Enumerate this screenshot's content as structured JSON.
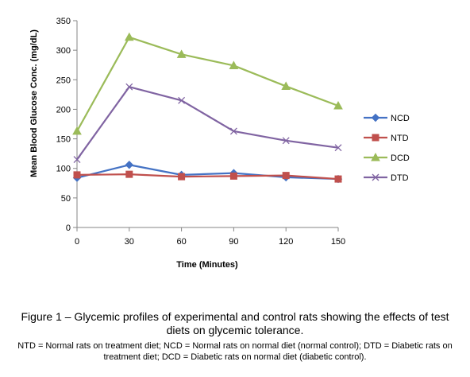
{
  "chart_data": {
    "type": "line",
    "title": "",
    "xlabel": "Time (Minutes)",
    "ylabel": "Mean Blood Glucose Conc. (mg/dL)",
    "x": [
      0,
      30,
      60,
      90,
      120,
      150
    ],
    "xlim": [
      0,
      150
    ],
    "ylim": [
      0,
      350
    ],
    "yticks": [
      0,
      50,
      100,
      150,
      200,
      250,
      300,
      350
    ],
    "grid": false,
    "legend_position": "right",
    "series": [
      {
        "name": "NCD",
        "color": "#4472C4",
        "marker": "diamond",
        "values": [
          84,
          106,
          89,
          92,
          85,
          82
        ]
      },
      {
        "name": "NTD",
        "color": "#C0504D",
        "marker": "square",
        "values": [
          89,
          90,
          86,
          87,
          88,
          82
        ]
      },
      {
        "name": "DCD",
        "color": "#9BBB59",
        "marker": "triangle",
        "values": [
          163,
          322,
          293,
          274,
          239,
          206
        ]
      },
      {
        "name": "DTD",
        "color": "#8064A2",
        "marker": "x",
        "values": [
          115,
          238,
          215,
          163,
          147,
          135
        ]
      }
    ]
  },
  "caption": {
    "title": "Figure 1 – Glycemic profiles of experimental and control rats showing the effects of test diets on glycemic tolerance.",
    "note": "NTD = Normal rats on treatment diet; NCD = Normal rats on normal diet (normal control); DTD = Diabetic rats on treatment diet; DCD = Diabetic rats on normal diet (diabetic control)."
  }
}
